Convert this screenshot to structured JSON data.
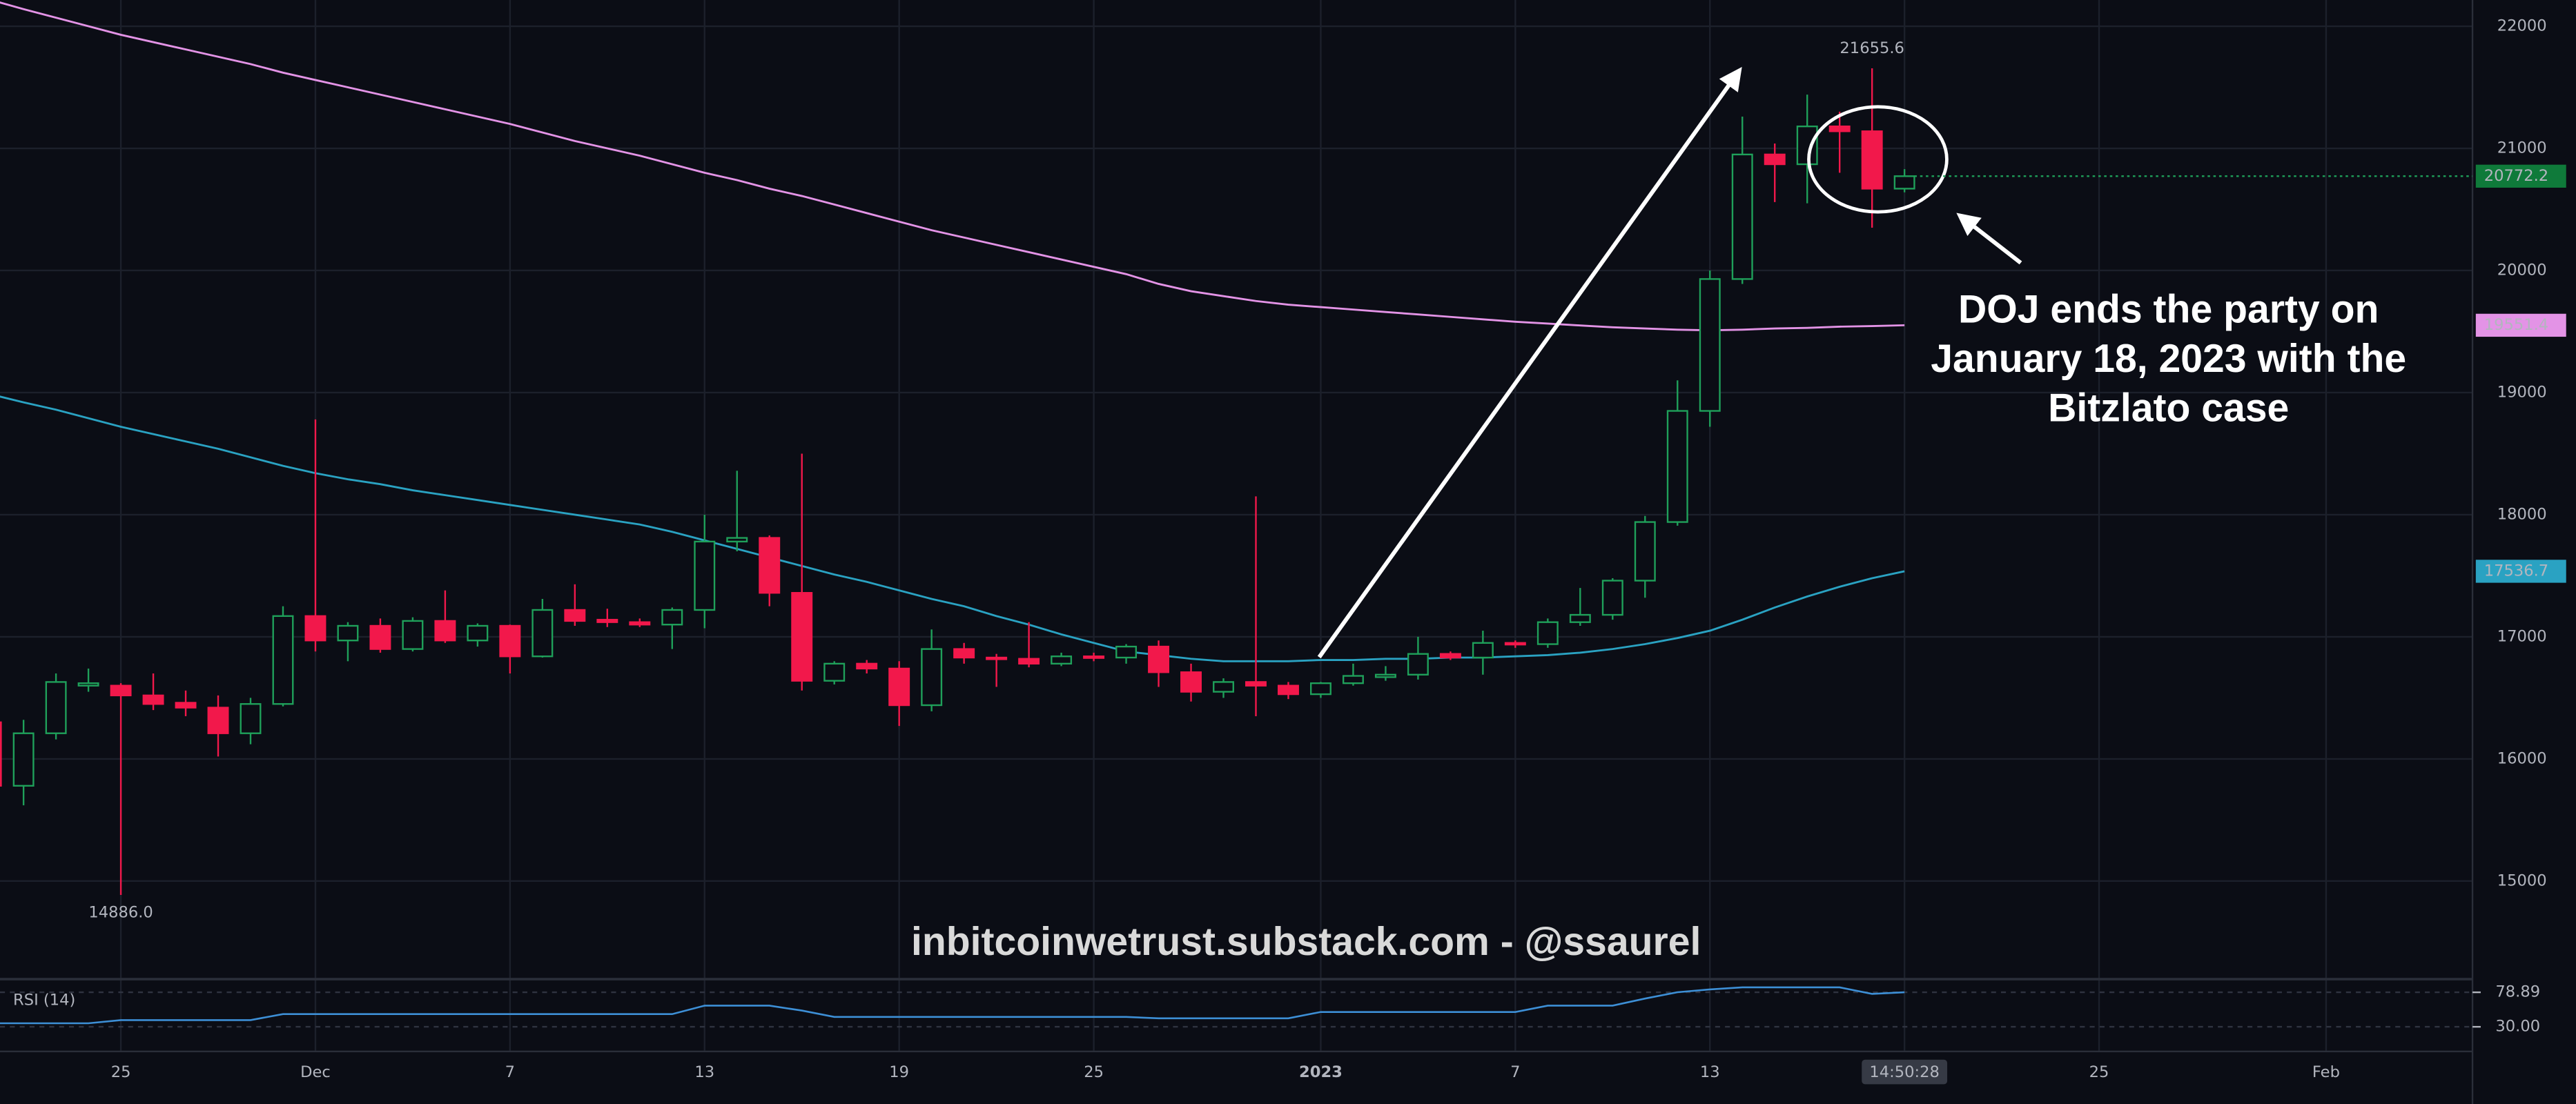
{
  "chart_data": {
    "type": "candlestick",
    "categories": [
      null,
      null,
      null,
      null,
      "25",
      null,
      null,
      null,
      null,
      null,
      "Dec",
      null,
      null,
      null,
      null,
      null,
      "7",
      null,
      null,
      null,
      null,
      null,
      "13",
      null,
      null,
      null,
      null,
      null,
      "19",
      null,
      null,
      null,
      null,
      null,
      "25",
      null,
      null,
      null,
      null,
      null,
      null,
      "2023",
      null,
      null,
      null,
      null,
      null,
      "7",
      null,
      null,
      null,
      null,
      null,
      "13",
      null,
      null,
      null,
      null,
      null,
      "14:50:28",
      null,
      null,
      null,
      null,
      null,
      "25",
      null,
      null,
      null,
      null,
      null,
      null,
      "Feb"
    ],
    "open": [
      16300,
      15780,
      16210,
      16600,
      16600,
      16520,
      16460,
      16420,
      16210,
      16450,
      17170,
      16970,
      17090,
      16900,
      17130,
      16970,
      17090,
      16840,
      17220,
      17140,
      17120,
      17100,
      17220,
      17780,
      17810,
      17360,
      16640,
      16780,
      16740,
      16440,
      16900,
      16830,
      16820,
      16780,
      16840,
      16830,
      16920,
      16710,
      16550,
      16630,
      16600,
      16530,
      16620,
      16670,
      16690,
      16860,
      16830,
      16950,
      16940,
      17120,
      17180,
      17460,
      17940,
      18850,
      19930,
      20950,
      20870,
      21180,
      21140,
      20670,
      null,
      null,
      null,
      null,
      null,
      null,
      null,
      null,
      null,
      null,
      null,
      null,
      null
    ],
    "high": [
      16350,
      16320,
      16700,
      16740,
      16620,
      16700,
      16560,
      16520,
      16500,
      17250,
      18780,
      17120,
      17150,
      17160,
      17380,
      17110,
      17100,
      17310,
      17430,
      17230,
      17150,
      17240,
      18000,
      18360,
      17830,
      18500,
      16800,
      16810,
      16800,
      17060,
      16950,
      16860,
      17120,
      16870,
      16870,
      16940,
      16970,
      16780,
      16660,
      18150,
      16630,
      16630,
      16780,
      16760,
      17000,
      16880,
      17050,
      16970,
      17150,
      17400,
      17480,
      17990,
      19100,
      20000,
      21260,
      21040,
      21440,
      21300,
      21655.6,
      20830,
      null,
      null,
      null,
      null,
      null,
      null,
      null,
      null,
      null,
      null,
      null,
      null,
      null
    ],
    "low": [
      15750,
      15620,
      16160,
      16550,
      14886,
      16400,
      16350,
      16020,
      16120,
      16430,
      16880,
      16800,
      16870,
      16880,
      16950,
      16920,
      16700,
      16830,
      17090,
      17080,
      17080,
      16900,
      17070,
      17700,
      17250,
      16560,
      16610,
      16700,
      16270,
      16390,
      16780,
      16590,
      16750,
      16760,
      16800,
      16780,
      16590,
      16470,
      16500,
      16350,
      16490,
      16500,
      16600,
      16640,
      16650,
      16810,
      16690,
      16910,
      16910,
      17090,
      17140,
      17320,
      17910,
      18720,
      19890,
      20560,
      20550,
      20800,
      20350,
      20640,
      null,
      null,
      null,
      null,
      null,
      null,
      null,
      null,
      null,
      null,
      null,
      null,
      null
    ],
    "close": [
      15780,
      16210,
      16630,
      16620,
      16520,
      16450,
      16420,
      16210,
      16450,
      17170,
      16970,
      17090,
      16900,
      17130,
      16970,
      17090,
      16840,
      17220,
      17130,
      17120,
      17100,
      17220,
      17780,
      17810,
      17360,
      16640,
      16780,
      16740,
      16440,
      16900,
      16830,
      16820,
      16780,
      16840,
      16830,
      16920,
      16710,
      16550,
      16630,
      16600,
      16530,
      16620,
      16680,
      16690,
      16860,
      16830,
      16950,
      16940,
      17120,
      17180,
      17460,
      17940,
      18850,
      19930,
      20950,
      20870,
      21180,
      21140,
      20670,
      20772.2,
      null,
      null,
      null,
      null,
      null,
      null,
      null,
      null,
      null,
      null,
      null,
      null,
      null
    ],
    "up_color": "#1fa05a",
    "down_color": "#f2184b",
    "low_label": "14886.0",
    "overlays": [
      {
        "color": "#e393e6",
        "values": [
          22215,
          22140,
          22070,
          22000,
          21930,
          21870,
          21810,
          21750,
          21690,
          21620,
          21560,
          21500,
          21440,
          21380,
          21320,
          21260,
          21200,
          21130,
          21060,
          21000,
          20940,
          20870,
          20800,
          20740,
          20670,
          20610,
          20540,
          20470,
          20400,
          20330,
          20270,
          20210,
          20150,
          20090,
          20030,
          19970,
          19890,
          19830,
          19790,
          19750,
          19720,
          19700,
          19680,
          19660,
          19640,
          19620,
          19600,
          19580,
          19565,
          19550,
          19535,
          19525,
          19515,
          19510,
          19515,
          19525,
          19530,
          19540,
          19545,
          19551.4,
          null,
          null,
          null,
          null,
          null,
          null,
          null,
          null,
          null,
          null,
          null,
          null,
          null
        ]
      },
      {
        "color": "#2aa2c2",
        "values": [
          18985,
          18920,
          18860,
          18790,
          18720,
          18660,
          18600,
          18540,
          18470,
          18400,
          18340,
          18290,
          18250,
          18200,
          18160,
          18120,
          18080,
          18040,
          18000,
          17960,
          17920,
          17860,
          17790,
          17720,
          17650,
          17580,
          17510,
          17450,
          17380,
          17310,
          17250,
          17170,
          17100,
          17020,
          16950,
          16880,
          16850,
          16820,
          16800,
          16800,
          16800,
          16810,
          16810,
          16820,
          16820,
          16830,
          16830,
          16840,
          16850,
          16870,
          16900,
          16940,
          16990,
          17050,
          17140,
          17240,
          17330,
          17410,
          17480,
          17536.7,
          null,
          null,
          null,
          null,
          null,
          null,
          null,
          null,
          null,
          null,
          null,
          null,
          null
        ]
      }
    ],
    "ylim": [
      14210,
      22215
    ],
    "yticks": [
      15000,
      16000,
      17000,
      18000,
      19000,
      20000,
      21000,
      22000
    ],
    "grid": true,
    "annotation": [
      "DOJ ends the party on",
      "January 18, 2023 with the",
      "Bitzlato case"
    ],
    "watermark": "inbitcoinwetrust.substack.com - @ssaurel",
    "rsi": {
      "title": "RSI (14)",
      "color": "#3d8fd6",
      "values": [
        35,
        35,
        35,
        35,
        39.5,
        39.5,
        39.5,
        39.5,
        39.5,
        48,
        48,
        48,
        48,
        48,
        48,
        48,
        48,
        48,
        48,
        48,
        48,
        48,
        60,
        60,
        60,
        53,
        44,
        44,
        44,
        44,
        44,
        44,
        44,
        44,
        44,
        44,
        42,
        42,
        42,
        42,
        42,
        51,
        51,
        51,
        51,
        51,
        51,
        51,
        60,
        60,
        60,
        70,
        79,
        83,
        85.9,
        85.9,
        85.9,
        85.9,
        76.6,
        78.89,
        null,
        null,
        null,
        null,
        null,
        null,
        null,
        null,
        null,
        null,
        null,
        null,
        null
      ],
      "ylim": [
        -4.9,
        95.2
      ],
      "yticks": [
        78.89,
        {
          "value": 30,
          "label": "30.00"
        }
      ]
    }
  }
}
